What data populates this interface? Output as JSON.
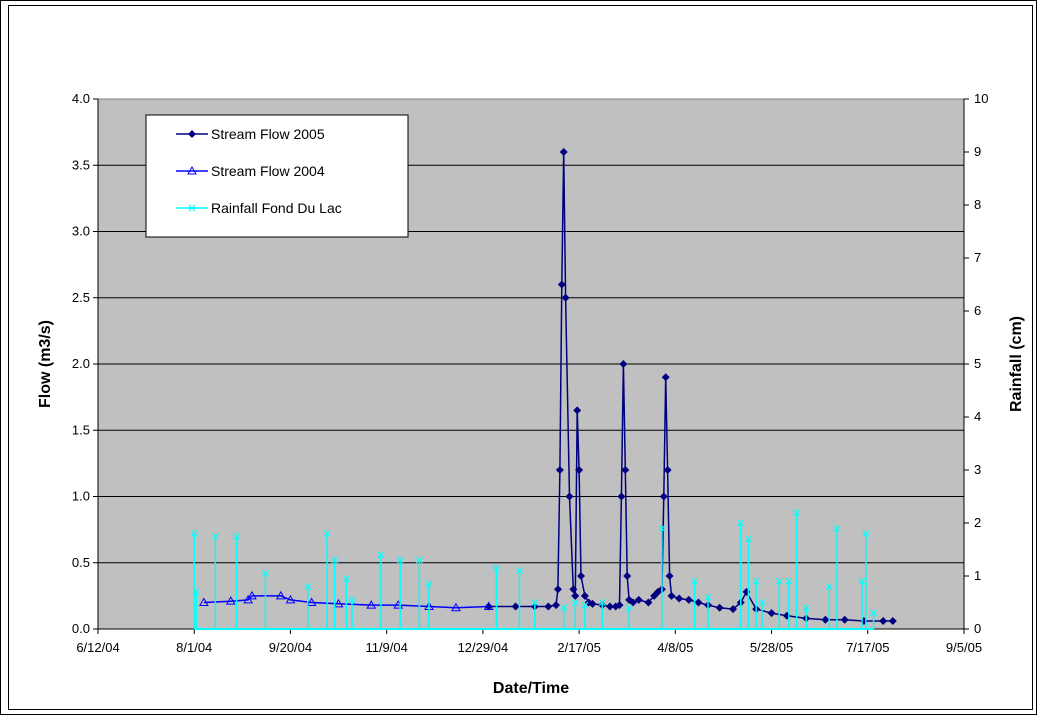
{
  "chart_data": {
    "type": "line",
    "title": "",
    "xlabel": "Date/Time",
    "ylabel": "Flow (m3/s)",
    "y2label": "Rainfall (cm)",
    "x_tick_labels": [
      "6/12/04",
      "8/1/04",
      "9/20/04",
      "11/9/04",
      "12/29/04",
      "2/17/05",
      "4/8/05",
      "5/28/05",
      "7/17/05",
      "9/5/05"
    ],
    "y_tick_labels": [
      "0.0",
      "0.5",
      "1.0",
      "1.5",
      "2.0",
      "2.5",
      "3.0",
      "3.5",
      "4.0"
    ],
    "y2_tick_labels": [
      "0",
      "1",
      "2",
      "3",
      "4",
      "5",
      "6",
      "7",
      "8",
      "9",
      "10"
    ],
    "xlim": [
      "2004-06-12",
      "2005-09-05"
    ],
    "ylim": [
      0,
      4
    ],
    "y2lim": [
      0,
      10
    ],
    "grid": "horizontal",
    "plot_background": "#C0C0C0",
    "legend_position": "top-left",
    "series": [
      {
        "name": "Stream Flow 2005",
        "axis": "left",
        "color": "#000080",
        "marker": "diamond",
        "x": [
          "2005-01-01",
          "2005-01-15",
          "2005-01-25",
          "2005-02-01",
          "2005-02-05",
          "2005-02-06",
          "2005-02-07",
          "2005-02-08",
          "2005-02-09",
          "2005-02-10",
          "2005-02-12",
          "2005-02-14",
          "2005-02-15",
          "2005-02-16",
          "2005-02-17",
          "2005-02-18",
          "2005-02-20",
          "2005-02-22",
          "2005-02-24",
          "2005-03-01",
          "2005-03-05",
          "2005-03-08",
          "2005-03-10",
          "2005-03-11",
          "2005-03-12",
          "2005-03-13",
          "2005-03-14",
          "2005-03-15",
          "2005-03-17",
          "2005-03-20",
          "2005-03-25",
          "2005-03-28",
          "2005-03-30",
          "2005-04-01",
          "2005-04-02",
          "2005-04-03",
          "2005-04-04",
          "2005-04-05",
          "2005-04-06",
          "2005-04-10",
          "2005-04-15",
          "2005-04-20",
          "2005-04-25",
          "2005-05-01",
          "2005-05-08",
          "2005-05-12",
          "2005-05-15",
          "2005-05-20",
          "2005-05-28",
          "2005-06-05",
          "2005-06-15",
          "2005-06-25",
          "2005-07-05",
          "2005-07-15",
          "2005-07-25",
          "2005-07-30"
        ],
        "y": [
          0.17,
          0.17,
          0.17,
          0.17,
          0.18,
          0.3,
          1.2,
          2.6,
          3.6,
          2.5,
          1.0,
          0.3,
          0.25,
          1.65,
          1.2,
          0.4,
          0.25,
          0.2,
          0.19,
          0.18,
          0.17,
          0.17,
          0.18,
          1.0,
          2.0,
          1.2,
          0.4,
          0.22,
          0.2,
          0.22,
          0.2,
          0.25,
          0.28,
          0.3,
          1.0,
          1.9,
          1.2,
          0.4,
          0.25,
          0.23,
          0.22,
          0.2,
          0.18,
          0.16,
          0.15,
          0.2,
          0.28,
          0.15,
          0.12,
          0.1,
          0.08,
          0.07,
          0.07,
          0.06,
          0.06,
          0.06
        ]
      },
      {
        "name": "Stream Flow 2004",
        "axis": "left",
        "color": "#0000FF",
        "marker": "triangle",
        "x": [
          "2004-08-06",
          "2004-08-20",
          "2004-08-29",
          "2004-08-31",
          "2004-09-15",
          "2004-09-20",
          "2004-10-01",
          "2004-10-15",
          "2004-11-01",
          "2004-11-15",
          "2004-12-01",
          "2004-12-15",
          "2005-01-01"
        ],
        "y": [
          0.2,
          0.21,
          0.22,
          0.25,
          0.25,
          0.22,
          0.2,
          0.19,
          0.18,
          0.18,
          0.17,
          0.16,
          0.17
        ]
      },
      {
        "name": "Rainfall Fond Du Lac",
        "axis": "right",
        "color": "#00FFFF",
        "marker": "x",
        "x": [
          "2004-08-01",
          "2004-08-02",
          "2004-08-12",
          "2004-08-23",
          "2004-09-07",
          "2004-09-29",
          "2004-10-09",
          "2004-10-13",
          "2004-10-19",
          "2004-10-22",
          "2004-11-06",
          "2004-11-16",
          "2004-11-26",
          "2004-12-01",
          "2005-01-05",
          "2005-01-17",
          "2005-01-25",
          "2005-02-09",
          "2005-02-15",
          "2005-02-20",
          "2005-03-01",
          "2005-03-15",
          "2005-04-01",
          "2005-04-18",
          "2005-04-25",
          "2005-05-12",
          "2005-05-16",
          "2005-05-20",
          "2005-05-23",
          "2005-06-01",
          "2005-06-06",
          "2005-06-10",
          "2005-06-15",
          "2005-06-27",
          "2005-07-01",
          "2005-07-14",
          "2005-07-16",
          "2005-07-20"
        ],
        "y": [
          1.8,
          0.7,
          1.75,
          1.75,
          1.05,
          0.8,
          1.8,
          1.3,
          0.95,
          0.55,
          1.4,
          1.3,
          1.3,
          0.85,
          1.15,
          1.1,
          0.5,
          0.4,
          0.5,
          0.45,
          0.5,
          0.4,
          1.9,
          0.9,
          0.6,
          2.0,
          1.7,
          0.9,
          0.5,
          0.9,
          0.9,
          2.2,
          0.4,
          0.8,
          1.9,
          0.9,
          1.8,
          0.3
        ]
      }
    ]
  }
}
